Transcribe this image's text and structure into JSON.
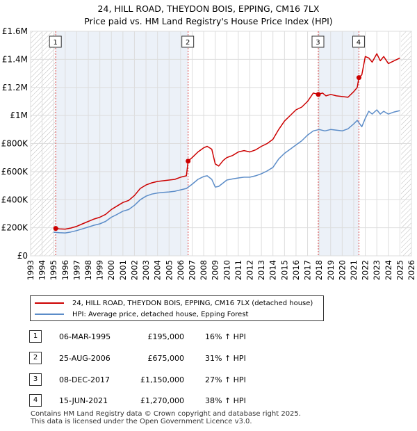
{
  "title_line1": "24, HILL ROAD, THEYDON BOIS, EPPING, CM16 7LX",
  "title_line2": "Price paid vs. HM Land Registry's House Price Index (HPI)",
  "legend": {
    "property_label": "24, HILL ROAD, THEYDON BOIS, EPPING, CM16 7LX (detached house)",
    "hpi_label": "HPI: Average price, detached house, Epping Forest"
  },
  "transactions": [
    {
      "num": "1",
      "date": "06-MAR-1995",
      "price": "£195,000",
      "hpi": "16% ↑ HPI"
    },
    {
      "num": "2",
      "date": "25-AUG-2006",
      "price": "£675,000",
      "hpi": "31% ↑ HPI"
    },
    {
      "num": "3",
      "date": "08-DEC-2017",
      "price": "£1,150,000",
      "hpi": "27% ↑ HPI"
    },
    {
      "num": "4",
      "date": "15-JUN-2021",
      "price": "£1,270,000",
      "hpi": "38% ↑ HPI"
    }
  ],
  "footer_line1": "Contains HM Land Registry data © Crown copyright and database right 2025.",
  "footer_line2": "This data is licensed under the Open Government Licence v3.0.",
  "colors": {
    "property": "#cc0000",
    "hpi": "#5b8cc8",
    "grid": "#dddddd",
    "band": "#dde6f2",
    "marker_line": "#dd4444"
  },
  "chart_data": {
    "type": "line",
    "title": "Price paid vs. HM Land Registry's House Price Index (HPI)",
    "xlabel": "",
    "ylabel": "",
    "xlim": [
      1993,
      2026
    ],
    "ylim": [
      0,
      1600000
    ],
    "x_ticks": [
      1993,
      1994,
      1995,
      1996,
      1997,
      1998,
      1999,
      2000,
      2001,
      2002,
      2003,
      2004,
      2005,
      2006,
      2007,
      2008,
      2009,
      2010,
      2011,
      2012,
      2013,
      2014,
      2015,
      2016,
      2017,
      2018,
      2019,
      2020,
      2021,
      2022,
      2023,
      2024,
      2025,
      2026
    ],
    "y_ticks": [
      0,
      200000,
      400000,
      600000,
      800000,
      1000000,
      1200000,
      1400000,
      1600000
    ],
    "y_tick_labels": [
      "£0",
      "£200K",
      "£400K",
      "£600K",
      "£800K",
      "£1M",
      "£1.2M",
      "£1.4M",
      "£1.6M"
    ],
    "hatch_regions": [
      [
        1993,
        1995.18
      ],
      [
        2025.1,
        2026
      ]
    ],
    "sale_markers": [
      {
        "label": "1",
        "x": 1995.18,
        "y": 195000
      },
      {
        "label": "2",
        "x": 2006.65,
        "y": 675000
      },
      {
        "label": "3",
        "x": 2017.93,
        "y": 1150000
      },
      {
        "label": "4",
        "x": 2021.45,
        "y": 1270000
      }
    ],
    "series": [
      {
        "name": "24, HILL ROAD, THEYDON BOIS, EPPING, CM16 7LX (detached house)",
        "x": [
          1995.18,
          1995.5,
          1996,
          1996.5,
          1997,
          1997.5,
          1998,
          1998.5,
          1999,
          1999.5,
          2000,
          2000.5,
          2001,
          2001.5,
          2002,
          2002.5,
          2003,
          2003.5,
          2004,
          2004.5,
          2005,
          2005.5,
          2006,
          2006.5,
          2006.65,
          2007,
          2007.5,
          2008,
          2008.3,
          2008.7,
          2009,
          2009.3,
          2009.7,
          2010,
          2010.5,
          2011,
          2011.5,
          2012,
          2012.5,
          2013,
          2013.5,
          2014,
          2014.5,
          2015,
          2015.5,
          2016,
          2016.5,
          2017,
          2017.5,
          2017.93,
          2018.3,
          2018.6,
          2019,
          2019.5,
          2020,
          2020.5,
          2021,
          2021.3,
          2021.45,
          2021.7,
          2022,
          2022.3,
          2022.6,
          2023,
          2023.3,
          2023.6,
          2024,
          2024.5,
          2025
        ],
        "y": [
          195000,
          192000,
          190000,
          198000,
          210000,
          228000,
          245000,
          262000,
          275000,
          295000,
          330000,
          355000,
          380000,
          395000,
          430000,
          480000,
          505000,
          520000,
          530000,
          535000,
          540000,
          545000,
          560000,
          570000,
          675000,
          700000,
          740000,
          770000,
          780000,
          760000,
          655000,
          640000,
          680000,
          700000,
          715000,
          740000,
          750000,
          740000,
          755000,
          780000,
          800000,
          830000,
          900000,
          960000,
          1000000,
          1040000,
          1060000,
          1100000,
          1160000,
          1150000,
          1160000,
          1140000,
          1150000,
          1140000,
          1135000,
          1130000,
          1170000,
          1200000,
          1270000,
          1290000,
          1420000,
          1410000,
          1380000,
          1440000,
          1390000,
          1420000,
          1370000,
          1390000,
          1410000
        ]
      },
      {
        "name": "HPI: Average price, detached house, Epping Forest",
        "x": [
          1995,
          1995.5,
          1996,
          1996.5,
          1997,
          1997.5,
          1998,
          1998.5,
          1999,
          1999.5,
          2000,
          2000.5,
          2001,
          2001.5,
          2002,
          2002.5,
          2003,
          2003.5,
          2004,
          2004.5,
          2005,
          2005.5,
          2006,
          2006.5,
          2007,
          2007.5,
          2008,
          2008.3,
          2008.7,
          2009,
          2009.3,
          2009.7,
          2010,
          2010.5,
          2011,
          2011.5,
          2012,
          2012.5,
          2013,
          2013.5,
          2014,
          2014.5,
          2015,
          2015.5,
          2016,
          2016.5,
          2017,
          2017.5,
          2018,
          2018.5,
          2019,
          2019.5,
          2020,
          2020.5,
          2021,
          2021.3,
          2021.7,
          2022,
          2022.3,
          2022.6,
          2023,
          2023.3,
          2023.6,
          2024,
          2024.5,
          2025
        ],
        "y": [
          168000,
          165000,
          163000,
          170000,
          180000,
          192000,
          205000,
          218000,
          228000,
          245000,
          275000,
          295000,
          318000,
          330000,
          360000,
          400000,
          425000,
          440000,
          448000,
          452000,
          455000,
          460000,
          470000,
          480000,
          510000,
          545000,
          565000,
          570000,
          545000,
          490000,
          495000,
          520000,
          540000,
          548000,
          555000,
          560000,
          560000,
          570000,
          585000,
          605000,
          630000,
          690000,
          730000,
          760000,
          790000,
          820000,
          860000,
          890000,
          900000,
          890000,
          900000,
          895000,
          890000,
          905000,
          940000,
          965000,
          920000,
          980000,
          1030000,
          1010000,
          1040000,
          1010000,
          1030000,
          1010000,
          1025000,
          1035000
        ]
      }
    ]
  }
}
